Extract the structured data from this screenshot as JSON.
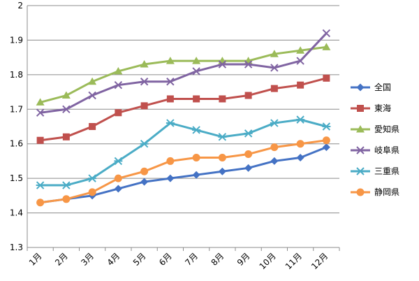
{
  "chart_data": {
    "type": "line",
    "title": "",
    "xlabel": "",
    "ylabel": "",
    "ylim": [
      1.3,
      2.0
    ],
    "y_ticks": [
      "1.3",
      "1.4",
      "1.5",
      "1.6",
      "1.7",
      "1.8",
      "1.9",
      "2"
    ],
    "grid": true,
    "legend_position": "right",
    "categories": [
      "1月",
      "2月",
      "3月",
      "4月",
      "5月",
      "6月",
      "7月",
      "8月",
      "9月",
      "10月",
      "11月",
      "12月"
    ],
    "series": [
      {
        "name": "全国",
        "color": "#4472C4",
        "marker": "diamond",
        "values": [
          1.43,
          1.44,
          1.45,
          1.47,
          1.49,
          1.5,
          1.51,
          1.52,
          1.53,
          1.55,
          1.56,
          1.59
        ]
      },
      {
        "name": "東海",
        "color": "#C0504D",
        "marker": "square",
        "values": [
          1.61,
          1.62,
          1.65,
          1.69,
          1.71,
          1.73,
          1.73,
          1.73,
          1.74,
          1.76,
          1.77,
          1.79
        ]
      },
      {
        "name": "愛知県",
        "color": "#9BBB59",
        "marker": "triangle",
        "values": [
          1.72,
          1.74,
          1.78,
          1.81,
          1.83,
          1.84,
          1.84,
          1.84,
          1.84,
          1.86,
          1.87,
          1.88
        ]
      },
      {
        "name": "岐阜県",
        "color": "#8064A2",
        "marker": "x",
        "values": [
          1.69,
          1.7,
          1.74,
          1.77,
          1.78,
          1.78,
          1.81,
          1.83,
          1.83,
          1.82,
          1.84,
          1.92
        ]
      },
      {
        "name": "三重県",
        "color": "#4BACC6",
        "marker": "star",
        "values": [
          1.48,
          1.48,
          1.5,
          1.55,
          1.6,
          1.66,
          1.64,
          1.62,
          1.63,
          1.66,
          1.67,
          1.65
        ]
      },
      {
        "name": "静岡県",
        "color": "#F79646",
        "marker": "circle",
        "values": [
          1.43,
          1.44,
          1.46,
          1.5,
          1.52,
          1.55,
          1.56,
          1.56,
          1.57,
          1.59,
          1.6,
          1.61
        ]
      }
    ]
  }
}
